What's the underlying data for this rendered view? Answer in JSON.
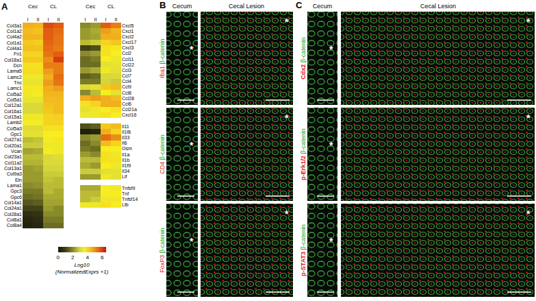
{
  "panel_label": "A",
  "chart_data": [
    {
      "type": "heatmap",
      "column_groups": [
        "Cec",
        "CL"
      ],
      "columns": [
        "I",
        "II",
        "I",
        "II"
      ],
      "rows": [
        "Col3a1",
        "Col1a2",
        "Col4a2",
        "Col1a1",
        "Col4a1",
        "Fn1",
        "Col18a1",
        "Dcn",
        "Lama5",
        "Lamc2",
        "Tnc",
        "Lamc1",
        "Col5a2",
        "Col5a1",
        "Col12a1",
        "Col16a1",
        "Col15a1",
        "Lamb2",
        "Col5a3",
        "Gpc1",
        "Col27a1",
        "Col20a1",
        "Vcan",
        "Col23a1",
        "Col11a2",
        "Col13a1",
        "Col9a3",
        "Eln",
        "Lama1",
        "Gpc3",
        "Gpc6",
        "Col14a1",
        "Col24a1",
        "Col28a1",
        "Col8a1",
        "Col8a4"
      ],
      "cells": [
        [
          4.6,
          4.5,
          5.8,
          5.6
        ],
        [
          4.4,
          4.3,
          5.6,
          5.4
        ],
        [
          4.5,
          4.5,
          5.6,
          5.3
        ],
        [
          4.2,
          4.1,
          5.5,
          5.3
        ],
        [
          4.3,
          4.3,
          5.4,
          5.2
        ],
        [
          4.0,
          4.0,
          5.3,
          5.6
        ],
        [
          4.2,
          4.2,
          5.0,
          6.0
        ],
        [
          3.8,
          3.8,
          5.2,
          5.2
        ],
        [
          3.9,
          3.9,
          4.8,
          5.2
        ],
        [
          3.4,
          3.4,
          4.6,
          5.4
        ],
        [
          3.3,
          3.3,
          4.8,
          5.3
        ],
        [
          3.7,
          3.7,
          4.6,
          4.8
        ],
        [
          3.4,
          3.5,
          4.5,
          4.5
        ],
        [
          3.3,
          3.3,
          4.4,
          4.4
        ],
        [
          3.0,
          3.0,
          4.3,
          4.4
        ],
        [
          3.0,
          3.0,
          4.2,
          4.4
        ],
        [
          3.4,
          3.4,
          4.0,
          4.1
        ],
        [
          3.5,
          3.5,
          4.0,
          4.0
        ],
        [
          3.1,
          3.1,
          3.8,
          3.8
        ],
        [
          3.2,
          3.2,
          3.6,
          3.6
        ],
        [
          2.6,
          2.7,
          3.5,
          3.7
        ],
        [
          2.8,
          2.8,
          3.4,
          3.4
        ],
        [
          2.3,
          2.4,
          3.5,
          3.4
        ],
        [
          2.6,
          2.6,
          3.0,
          3.1
        ],
        [
          2.5,
          2.5,
          3.0,
          3.0
        ],
        [
          2.2,
          2.3,
          2.9,
          2.9
        ],
        [
          2.2,
          2.2,
          2.8,
          2.8
        ],
        [
          2.2,
          2.2,
          2.7,
          2.6
        ],
        [
          2.0,
          2.1,
          2.6,
          2.6
        ],
        [
          1.8,
          1.8,
          2.6,
          2.4
        ],
        [
          1.6,
          1.7,
          2.4,
          2.4
        ],
        [
          1.3,
          1.4,
          2.3,
          2.3
        ],
        [
          1.0,
          1.0,
          2.2,
          2.0
        ],
        [
          0.6,
          0.7,
          2.0,
          2.0
        ],
        [
          0.4,
          0.5,
          1.8,
          1.8
        ],
        [
          0.3,
          0.4,
          1.6,
          1.6
        ]
      ]
    },
    {
      "type": "heatmap",
      "column_groups": [
        "Cec",
        "CL"
      ],
      "columns": [
        "I",
        "II",
        "I",
        "II"
      ],
      "rows": [
        "Cxcl5",
        "Cxcl1",
        "Cxcl2",
        "Cxcl17",
        "Cxcl3",
        "Ccl2",
        "Ccl11",
        "Ccl22",
        "Ccl3",
        "Ccl7",
        "Ccl4",
        "Ccl9",
        "Ccl8",
        "Ccl28",
        "Ccl6",
        "Ccl21a",
        "Cxcl16"
      ],
      "cells": [
        [
          2.0,
          2.2,
          5.6,
          5.2
        ],
        [
          2.2,
          2.4,
          4.8,
          4.5
        ],
        [
          2.2,
          2.3,
          4.6,
          4.6
        ],
        [
          2.6,
          2.8,
          4.0,
          4.2
        ],
        [
          1.0,
          1.2,
          3.8,
          3.7
        ],
        [
          2.0,
          2.2,
          3.8,
          3.6
        ],
        [
          1.6,
          1.8,
          3.6,
          3.4
        ],
        [
          1.6,
          1.6,
          3.2,
          3.3
        ],
        [
          2.2,
          2.4,
          3.4,
          3.2
        ],
        [
          1.4,
          1.6,
          3.0,
          3.0
        ],
        [
          1.8,
          1.8,
          2.9,
          2.8
        ],
        [
          3.0,
          3.2,
          4.2,
          4.4
        ],
        [
          2.0,
          2.6,
          3.6,
          3.2
        ],
        [
          4.6,
          4.8,
          4.6,
          4.4
        ],
        [
          3.8,
          4.0,
          4.6,
          4.6
        ],
        [
          3.2,
          3.4,
          3.6,
          3.8
        ],
        [
          3.4,
          3.4,
          3.8,
          3.6
        ]
      ]
    },
    {
      "type": "heatmap",
      "rows": [
        "Il11",
        "Il1f6",
        "Il33",
        "Il6",
        "Osm",
        "Il1a",
        "Il1b",
        "Il1f9",
        "Il34",
        "Lif"
      ],
      "cells": [
        [
          1.2,
          1.4,
          4.2,
          4.4
        ],
        [
          0.2,
          0.4,
          4.6,
          4.0
        ],
        [
          2.0,
          2.2,
          5.4,
          5.0
        ],
        [
          1.6,
          2.0,
          4.4,
          4.0
        ],
        [
          1.8,
          1.6,
          3.6,
          3.6
        ],
        [
          2.2,
          2.0,
          3.8,
          3.4
        ],
        [
          2.6,
          2.6,
          3.8,
          3.8
        ],
        [
          2.4,
          2.2,
          3.6,
          3.4
        ],
        [
          2.8,
          2.8,
          3.2,
          3.2
        ],
        [
          2.2,
          2.2,
          3.4,
          3.2
        ]
      ]
    },
    {
      "type": "heatmap",
      "rows": [
        "Tnfsf9",
        "Tnf",
        "Tnfsf14",
        "Ltb"
      ],
      "cells": [
        [
          2.4,
          2.4,
          3.6,
          3.4
        ],
        [
          2.6,
          2.6,
          3.6,
          3.6
        ],
        [
          2.6,
          2.8,
          3.4,
          3.4
        ],
        [
          3.4,
          3.4,
          3.8,
          3.6
        ]
      ]
    }
  ],
  "colorbar": {
    "zlim": [
      0,
      6.5
    ],
    "ticks": [
      0,
      2,
      4,
      6
    ],
    "title": [
      "Log10",
      "(NormalizedExprs +1)"
    ]
  },
  "image_panels": [
    {
      "label": "B",
      "columns": [
        "Cecum",
        "Cecal Lesion"
      ],
      "counterstain": "β-catenin",
      "stains": [
        "Iba1",
        "CD4",
        "FoxP3"
      ],
      "asterisk": "*"
    },
    {
      "label": "C",
      "columns": [
        "Cecum",
        "Cecal Lesion"
      ],
      "counterstain": "β-catenin",
      "stains": [
        "Cdx2",
        "p-Erk1/2",
        "p-STAT3"
      ],
      "asterisk": "*"
    }
  ]
}
